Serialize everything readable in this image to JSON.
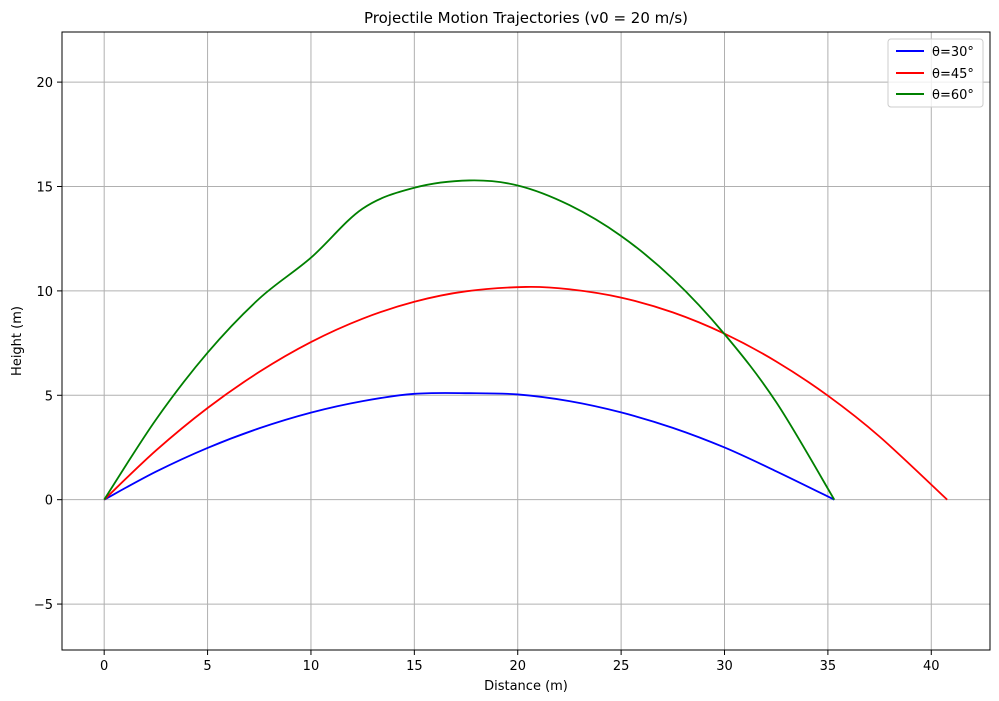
{
  "chart_data": {
    "type": "line",
    "title": "Projectile Motion Trajectories (v0 = 20 m/s)",
    "xlabel": "Distance (m)",
    "ylabel": "Height (m)",
    "xlim": [
      -2.04,
      42.84
    ],
    "ylim": [
      -7.2,
      22.4
    ],
    "xticks": [
      0,
      5,
      10,
      15,
      20,
      25,
      30,
      35,
      40
    ],
    "yticks": [
      -5,
      0,
      5,
      10,
      15,
      20
    ],
    "ytick_labels": [
      "−5",
      "0",
      "5",
      "10",
      "15",
      "20"
    ],
    "grid": true,
    "legend_position": "top-right",
    "series": [
      {
        "name": "θ=30°",
        "color": "#0000ff",
        "x": [
          0,
          2.5,
          5,
          7.5,
          10,
          12.5,
          15,
          17.66,
          20,
          22.5,
          25,
          27.5,
          30,
          32.5,
          35.31
        ],
        "y": [
          0,
          1.34,
          2.48,
          3.42,
          4.17,
          4.72,
          5.07,
          5.1,
          5.04,
          4.72,
          4.18,
          3.44,
          2.5,
          1.36,
          0
        ]
      },
      {
        "name": "θ=45°",
        "color": "#ff0000",
        "x": [
          0,
          2.5,
          5,
          7.5,
          10,
          12.5,
          15,
          17.5,
          20.39,
          22.5,
          25,
          27.5,
          30,
          32.5,
          35,
          37.5,
          40.77
        ],
        "y": [
          0,
          2.35,
          4.39,
          6.12,
          7.55,
          8.67,
          9.48,
          9.98,
          10.19,
          10.08,
          9.68,
          8.97,
          7.95,
          6.62,
          4.98,
          3.02,
          0
        ]
      },
      {
        "name": "θ=60°",
        "color": "#008000",
        "x": [
          0,
          2.5,
          5,
          7.5,
          10,
          12.5,
          15,
          17.66,
          20,
          22.5,
          25,
          27.5,
          30,
          32.5,
          35.31
        ],
        "y": [
          0,
          3.83,
          7.04,
          9.63,
          11.59,
          13.94,
          14.94,
          15.29,
          15.05,
          14.11,
          12.63,
          10.58,
          7.93,
          4.67,
          0
        ]
      }
    ]
  }
}
